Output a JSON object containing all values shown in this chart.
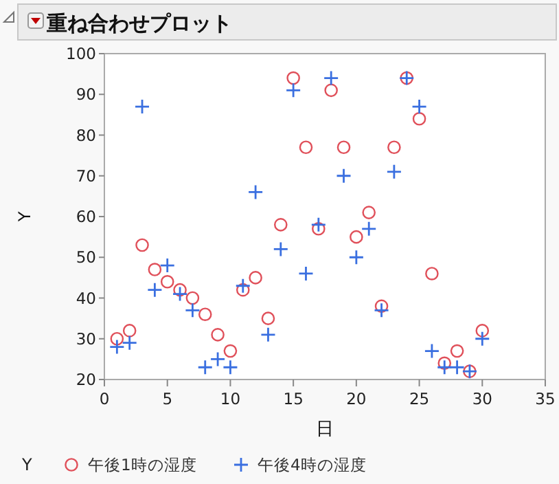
{
  "chart_data": {
    "type": "scatter",
    "title": "重ね合わせプロット",
    "xlabel": "日",
    "ylabel": "Y",
    "legend_title": "Y",
    "legend": "bottom",
    "grid": false,
    "xlim": [
      0,
      35
    ],
    "xticks": [
      0,
      5,
      10,
      15,
      20,
      25,
      30,
      35
    ],
    "ylim": [
      20,
      100
    ],
    "yticks": [
      20,
      30,
      40,
      50,
      60,
      70,
      80,
      90,
      100
    ],
    "x": [
      1,
      2,
      3,
      4,
      5,
      6,
      7,
      8,
      9,
      10,
      11,
      12,
      13,
      14,
      15,
      16,
      17,
      18,
      19,
      20,
      21,
      22,
      23,
      24,
      25,
      26,
      27,
      28,
      29,
      30
    ],
    "series": [
      {
        "name": "午後1時の湿度",
        "color": "#e0505a",
        "marker": "circle",
        "values": [
          30,
          32,
          53,
          47,
          44,
          42,
          40,
          36,
          31,
          27,
          42,
          45,
          35,
          58,
          94,
          77,
          57,
          91,
          77,
          55,
          61,
          38,
          77,
          94,
          84,
          46,
          24,
          27,
          22,
          32
        ]
      },
      {
        "name": "午後4時の湿度",
        "color": "#3a6fe0",
        "marker": "cross",
        "values": [
          28,
          29,
          87,
          42,
          48,
          41,
          37,
          23,
          25,
          23,
          43,
          66,
          31,
          52,
          91,
          46,
          58,
          94,
          70,
          50,
          57,
          37,
          71,
          94,
          87,
          27,
          23,
          23,
          22,
          30
        ]
      }
    ]
  }
}
